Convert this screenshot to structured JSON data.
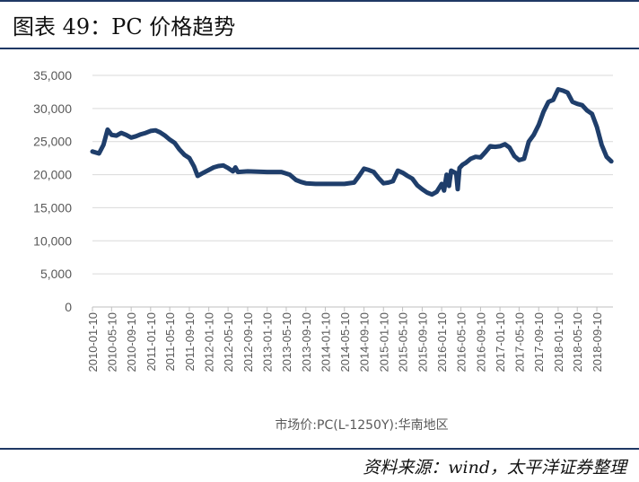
{
  "figure": {
    "title": "图表 49：PC 价格趋势",
    "source": "资料来源：wind，太平洋证券整理"
  },
  "chart_data": {
    "type": "line",
    "title": "",
    "xlabel": "",
    "ylabel": "",
    "ylim": [
      0,
      35000
    ],
    "yticks": [
      "0",
      "5,000",
      "10,000",
      "15,000",
      "20,000",
      "25,000",
      "30,000",
      "35,000"
    ],
    "yticks_values": [
      0,
      5000,
      10000,
      15000,
      20000,
      25000,
      30000,
      35000
    ],
    "xticks": [
      "2010-01-10",
      "2010-05-10",
      "2010-09-10",
      "2011-01-10",
      "2011-05-10",
      "2011-09-10",
      "2012-01-10",
      "2012-05-10",
      "2012-09-10",
      "2013-01-10",
      "2013-05-10",
      "2013-09-10",
      "2014-01-10",
      "2014-05-10",
      "2014-09-10",
      "2015-01-10",
      "2015-05-10",
      "2015-09-10",
      "2016-01-10",
      "2016-05-10",
      "2016-09-10",
      "2017-01-10",
      "2017-05-10",
      "2017-09-10",
      "2018-01-10",
      "2018-05-10",
      "2018-09-10"
    ],
    "grid": true,
    "legend_position": "bottom",
    "series_color": "#1f3e6b",
    "series": [
      {
        "name": "市场价:PC(L-1250Y):华南地区",
        "points": [
          [
            "2010-01-10",
            23500
          ],
          [
            "2010-02-20",
            23200
          ],
          [
            "2010-03-20",
            24500
          ],
          [
            "2010-04-15",
            26800
          ],
          [
            "2010-05-10",
            26000
          ],
          [
            "2010-06-10",
            25900
          ],
          [
            "2010-07-10",
            26300
          ],
          [
            "2010-08-10",
            26000
          ],
          [
            "2010-09-10",
            25600
          ],
          [
            "2010-10-10",
            25800
          ],
          [
            "2010-11-10",
            26100
          ],
          [
            "2010-12-10",
            26300
          ],
          [
            "2011-01-10",
            26600
          ],
          [
            "2011-02-10",
            26700
          ],
          [
            "2011-03-10",
            26400
          ],
          [
            "2011-04-10",
            25900
          ],
          [
            "2011-05-10",
            25300
          ],
          [
            "2011-06-10",
            24800
          ],
          [
            "2011-07-10",
            23800
          ],
          [
            "2011-08-10",
            23000
          ],
          [
            "2011-09-10",
            22500
          ],
          [
            "2011-10-10",
            21200
          ],
          [
            "2011-11-01",
            19800
          ],
          [
            "2011-12-01",
            20200
          ],
          [
            "2012-01-10",
            20700
          ],
          [
            "2012-02-10",
            21100
          ],
          [
            "2012-03-10",
            21300
          ],
          [
            "2012-04-10",
            21400
          ],
          [
            "2012-05-10",
            21000
          ],
          [
            "2012-06-10",
            20500
          ],
          [
            "2012-06-25",
            21100
          ],
          [
            "2012-07-10",
            20400
          ],
          [
            "2012-09-10",
            20500
          ],
          [
            "2013-01-10",
            20400
          ],
          [
            "2013-04-10",
            20400
          ],
          [
            "2013-06-01",
            20000
          ],
          [
            "2013-07-10",
            19200
          ],
          [
            "2013-08-10",
            18900
          ],
          [
            "2013-09-10",
            18700
          ],
          [
            "2013-11-10",
            18600
          ],
          [
            "2014-01-10",
            18600
          ],
          [
            "2014-05-10",
            18600
          ],
          [
            "2014-07-10",
            18800
          ],
          [
            "2014-08-10",
            19800
          ],
          [
            "2014-09-10",
            20900
          ],
          [
            "2014-10-10",
            20700
          ],
          [
            "2014-11-10",
            20400
          ],
          [
            "2014-12-10",
            19500
          ],
          [
            "2015-01-10",
            18700
          ],
          [
            "2015-02-10",
            18800
          ],
          [
            "2015-03-10",
            19000
          ],
          [
            "2015-04-10",
            20600
          ],
          [
            "2015-05-10",
            20300
          ],
          [
            "2015-06-10",
            19800
          ],
          [
            "2015-07-10",
            19400
          ],
          [
            "2015-08-10",
            18400
          ],
          [
            "2015-09-10",
            17800
          ],
          [
            "2015-10-10",
            17300
          ],
          [
            "2015-11-10",
            17000
          ],
          [
            "2015-12-10",
            17400
          ],
          [
            "2016-01-10",
            18600
          ],
          [
            "2016-01-25",
            17600
          ],
          [
            "2016-02-10",
            20000
          ],
          [
            "2016-02-25",
            18300
          ],
          [
            "2016-03-10",
            20600
          ],
          [
            "2016-04-10",
            20200
          ],
          [
            "2016-04-20",
            17800
          ],
          [
            "2016-05-01",
            21000
          ],
          [
            "2016-05-20",
            21500
          ],
          [
            "2016-06-10",
            21800
          ],
          [
            "2016-07-10",
            22400
          ],
          [
            "2016-08-10",
            22700
          ],
          [
            "2016-09-10",
            22600
          ],
          [
            "2016-10-10",
            23400
          ],
          [
            "2016-11-10",
            24300
          ],
          [
            "2016-12-10",
            24200
          ],
          [
            "2017-01-10",
            24300
          ],
          [
            "2017-02-10",
            24600
          ],
          [
            "2017-03-10",
            24100
          ],
          [
            "2017-04-10",
            22800
          ],
          [
            "2017-05-10",
            22200
          ],
          [
            "2017-06-10",
            22400
          ],
          [
            "2017-07-10",
            25000
          ],
          [
            "2017-08-10",
            26000
          ],
          [
            "2017-09-10",
            27500
          ],
          [
            "2017-10-10",
            29500
          ],
          [
            "2017-11-10",
            31000
          ],
          [
            "2017-12-10",
            31300
          ],
          [
            "2018-01-10",
            32900
          ],
          [
            "2018-02-10",
            32700
          ],
          [
            "2018-03-10",
            32400
          ],
          [
            "2018-04-10",
            31000
          ],
          [
            "2018-05-10",
            30700
          ],
          [
            "2018-06-10",
            30500
          ],
          [
            "2018-07-10",
            29700
          ],
          [
            "2018-08-10",
            29200
          ],
          [
            "2018-09-10",
            27200
          ],
          [
            "2018-10-10",
            24500
          ],
          [
            "2018-11-10",
            22700
          ],
          [
            "2018-12-10",
            22000
          ]
        ]
      }
    ]
  }
}
